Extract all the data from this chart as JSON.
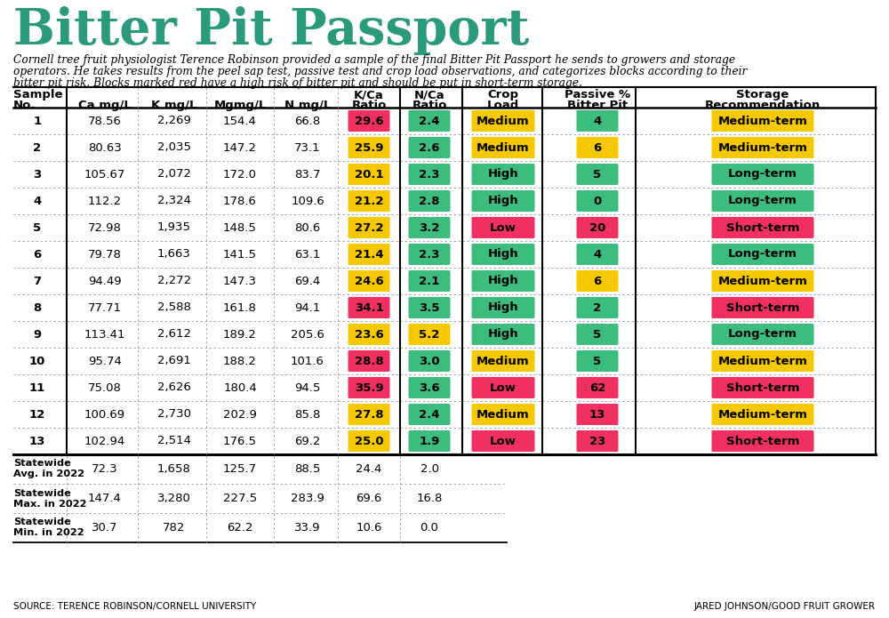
{
  "title": "Bitter Pit Passport",
  "subtitle_line1": "Cornell tree fruit physiologist Terence Robinson provided a sample of the final Bitter Pit Passport he sends to growers and storage",
  "subtitle_line2": "operators. He takes results from the peel sap test, passive test and crop load observations, and categorizes blocks according to their",
  "subtitle_line3": "bitter pit risk. Blocks marked red have a high risk of bitter pit and should be put in short-term storage.",
  "col_headers_line1": [
    "Sample",
    "",
    "",
    "",
    "",
    "K/Ca",
    "N/Ca",
    "Crop",
    "Passive %",
    "Storage"
  ],
  "col_headers_line2": [
    "No.",
    "Ca mg/L",
    "K mg/L",
    "Mgmg/L",
    "N mg/L",
    "Ratio",
    "Ratio",
    "Load",
    "Bitter Pit",
    "Recommendation"
  ],
  "rows": [
    [
      "1",
      "78.56",
      "2,269",
      "154.4",
      "66.8",
      "29.6",
      "2.4",
      "Medium",
      "4",
      "Medium-term"
    ],
    [
      "2",
      "80.63",
      "2,035",
      "147.2",
      "73.1",
      "25.9",
      "2.6",
      "Medium",
      "6",
      "Medium-term"
    ],
    [
      "3",
      "105.67",
      "2,072",
      "172.0",
      "83.7",
      "20.1",
      "2.3",
      "High",
      "5",
      "Long-term"
    ],
    [
      "4",
      "112.2",
      "2,324",
      "178.6",
      "109.6",
      "21.2",
      "2.8",
      "High",
      "0",
      "Long-term"
    ],
    [
      "5",
      "72.98",
      "1,935",
      "148.5",
      "80.6",
      "27.2",
      "3.2",
      "Low",
      "20",
      "Short-term"
    ],
    [
      "6",
      "79.78",
      "1,663",
      "141.5",
      "63.1",
      "21.4",
      "2.3",
      "High",
      "4",
      "Long-term"
    ],
    [
      "7",
      "94.49",
      "2,272",
      "147.3",
      "69.4",
      "24.6",
      "2.1",
      "High",
      "6",
      "Medium-term"
    ],
    [
      "8",
      "77.71",
      "2,588",
      "161.8",
      "94.1",
      "34.1",
      "3.5",
      "High",
      "2",
      "Short-term"
    ],
    [
      "9",
      "113.41",
      "2,612",
      "189.2",
      "205.6",
      "23.6",
      "5.2",
      "High",
      "5",
      "Long-term"
    ],
    [
      "10",
      "95.74",
      "2,691",
      "188.2",
      "101.6",
      "28.8",
      "3.0",
      "Medium",
      "5",
      "Medium-term"
    ],
    [
      "11",
      "75.08",
      "2,626",
      "180.4",
      "94.5",
      "35.9",
      "3.6",
      "Low",
      "62",
      "Short-term"
    ],
    [
      "12",
      "100.69",
      "2,730",
      "202.9",
      "85.8",
      "27.8",
      "2.4",
      "Medium",
      "13",
      "Medium-term"
    ],
    [
      "13",
      "102.94",
      "2,514",
      "176.5",
      "69.2",
      "25.0",
      "1.9",
      "Low",
      "23",
      "Short-term"
    ]
  ],
  "statewide_rows": [
    [
      "Statewide\nAvg. in 2022",
      "72.3",
      "1,658",
      "125.7",
      "88.5",
      "24.4",
      "2.0"
    ],
    [
      "Statewide\nMax. in 2022",
      "147.4",
      "3,280",
      "227.5",
      "283.9",
      "69.6",
      "16.8"
    ],
    [
      "Statewide\nMin. in 2022",
      "30.7",
      "782",
      "62.2",
      "33.9",
      "10.6",
      "0.0"
    ]
  ],
  "kca_colors_list": [
    "#F03060",
    "#F5C800",
    "#F5C800",
    "#F5C800",
    "#F5C800",
    "#F5C800",
    "#F5C800",
    "#F03060",
    "#F5C800",
    "#F03060",
    "#F03060",
    "#F5C800",
    "#F5C800"
  ],
  "nca_colors_list": [
    "#3DBD7D",
    "#3DBD7D",
    "#3DBD7D",
    "#3DBD7D",
    "#3DBD7D",
    "#3DBD7D",
    "#3DBD7D",
    "#3DBD7D",
    "#F5C800",
    "#3DBD7D",
    "#3DBD7D",
    "#3DBD7D",
    "#3DBD7D"
  ],
  "passive_colors_list": [
    "#3DBD7D",
    "#F5C800",
    "#3DBD7D",
    "#3DBD7D",
    "#F03060",
    "#3DBD7D",
    "#F5C800",
    "#3DBD7D",
    "#3DBD7D",
    "#3DBD7D",
    "#F03060",
    "#F03060",
    "#F03060"
  ],
  "crop_load_colors": {
    "Medium": "#F5C800",
    "High": "#3DBD7D",
    "Low": "#F03060"
  },
  "storage_colors": {
    "Medium-term": "#F5C800",
    "Long-term": "#3DBD7D",
    "Short-term": "#F03060"
  },
  "title_color": "#2B9A7C",
  "bg_color": "#FFFFFF",
  "source_left": "SOURCE: TERENCE ROBINSON/CORNELL UNIVERSITY",
  "source_right": "JARED JOHNSON/GOOD FRUIT GROWER"
}
